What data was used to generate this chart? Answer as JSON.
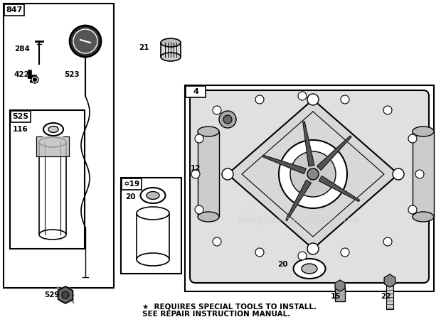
{
  "bg_color": "#ffffff",
  "footer_line1": "★  REQUIRES SPECIAL TOOLS TO INSTALL.",
  "footer_line2": "SEE REPAIR INSTRUCTION MANUAL.",
  "watermark": "eReplacementParts.com"
}
